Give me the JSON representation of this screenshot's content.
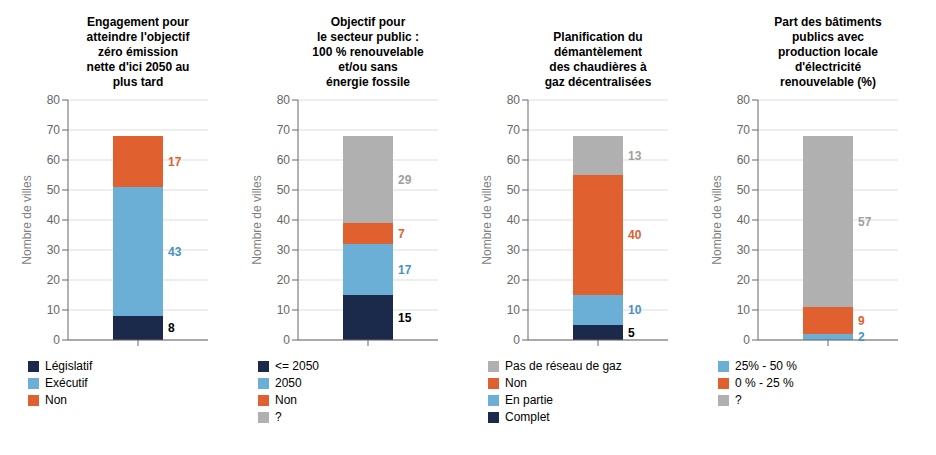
{
  "chart_data": [
    {
      "type": "bar",
      "stacked": true,
      "data_labels": true,
      "grid": true,
      "legend": "bottom",
      "title": "Engagement pour\natteindre l'objectif\nzéro émission\nnette d'ici 2050 au\nplus tard",
      "y_label": "Nombre de villes",
      "categories": [
        null
      ],
      "ylim": [
        0,
        80
      ],
      "yticks": [
        0,
        10,
        20,
        30,
        40,
        50,
        60,
        70,
        80
      ],
      "series": [
        {
          "name": "Législatif",
          "color": "#1b2a4a",
          "label_color": "#000000",
          "values": [
            8
          ]
        },
        {
          "name": "Exécutif",
          "color": "#6baed6",
          "label_color": "#4a90c4",
          "values": [
            43
          ]
        },
        {
          "name": "Non",
          "color": "#e06030",
          "label_color": "#e06030",
          "values": [
            17
          ]
        }
      ],
      "legend_entries": [
        "Législatif",
        "Exécutif",
        "Non"
      ]
    },
    {
      "type": "bar",
      "stacked": true,
      "data_labels": true,
      "grid": true,
      "legend": "bottom",
      "title": "Objectif pour\nle secteur public :\n100 % renouvelable\net/ou sans\nénergie fossile",
      "y_label": "Nombre de villes",
      "categories": [
        null
      ],
      "ylim": [
        0,
        80
      ],
      "yticks": [
        0,
        10,
        20,
        30,
        40,
        50,
        60,
        70,
        80
      ],
      "series": [
        {
          "name": "<= 2050",
          "color": "#1b2a4a",
          "label_color": "#000000",
          "values": [
            15
          ]
        },
        {
          "name": "2050",
          "color": "#6baed6",
          "label_color": "#4a90c4",
          "values": [
            17
          ]
        },
        {
          "name": "Non",
          "color": "#e06030",
          "label_color": "#e06030",
          "values": [
            7
          ]
        },
        {
          "name": "?",
          "color": "#b0b0b0",
          "label_color": "#a0a0a0",
          "values": [
            29
          ]
        }
      ],
      "legend_entries": [
        "<= 2050",
        "2050",
        "Non",
        "?"
      ]
    },
    {
      "type": "bar",
      "stacked": true,
      "data_labels": true,
      "grid": true,
      "legend": "bottom",
      "title": "Planification du\ndémantèlement\ndes chaudières à\ngaz décentralisées",
      "y_label": "Nombre de villes",
      "categories": [
        null
      ],
      "ylim": [
        0,
        80
      ],
      "yticks": [
        0,
        10,
        20,
        30,
        40,
        50,
        60,
        70,
        80
      ],
      "series": [
        {
          "name": "Complet",
          "color": "#1b2a4a",
          "label_color": "#000000",
          "values": [
            5
          ]
        },
        {
          "name": "En partie",
          "color": "#6baed6",
          "label_color": "#4a90c4",
          "values": [
            10
          ]
        },
        {
          "name": "Non",
          "color": "#e06030",
          "label_color": "#e06030",
          "values": [
            40
          ]
        },
        {
          "name": "Pas de réseau de gaz",
          "color": "#b0b0b0",
          "label_color": "#a0a0a0",
          "values": [
            13
          ]
        }
      ],
      "legend_entries": [
        "Pas de réseau de gaz",
        "Non",
        "En partie",
        "Complet"
      ]
    },
    {
      "type": "bar",
      "stacked": true,
      "data_labels": true,
      "grid": true,
      "legend": "bottom",
      "title": "Part des bâtiments\npublics avec\nproduction locale\nd'électricité\nrenouvelable (%)",
      "y_label": "Nombre de villes",
      "categories": [
        null
      ],
      "ylim": [
        0,
        80
      ],
      "yticks": [
        0,
        10,
        20,
        30,
        40,
        50,
        60,
        70,
        80
      ],
      "series": [
        {
          "name": "25% - 50 %",
          "color": "#6baed6",
          "label_color": "#4a90c4",
          "values": [
            2
          ]
        },
        {
          "name": "0 % - 25 %",
          "color": "#e06030",
          "label_color": "#e06030",
          "values": [
            9
          ]
        },
        {
          "name": "?",
          "color": "#b0b0b0",
          "label_color": "#a0a0a0",
          "values": [
            57
          ]
        }
      ],
      "legend_entries": [
        "25% - 50 %",
        "0 % - 25 %",
        "?"
      ]
    }
  ]
}
